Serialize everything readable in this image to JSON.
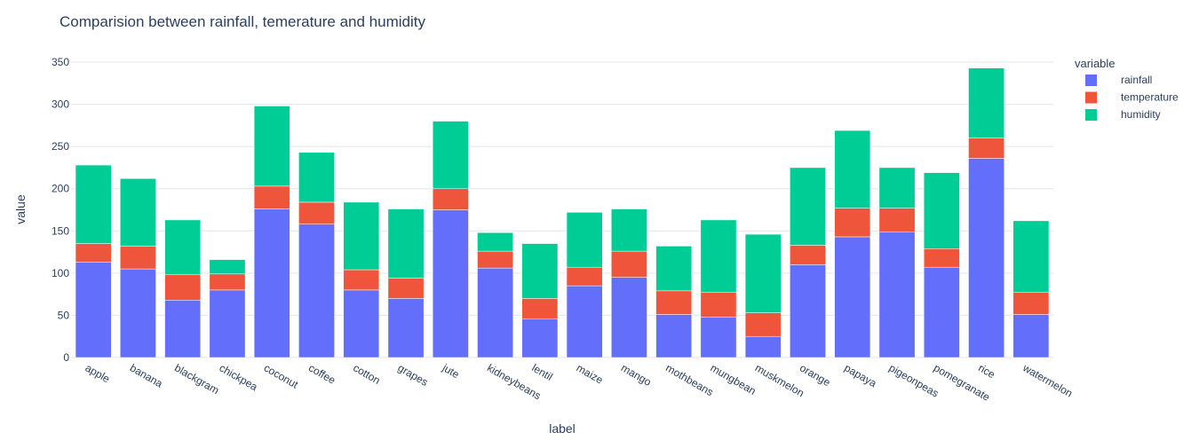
{
  "chart_data": {
    "type": "bar",
    "stacked": true,
    "title": "Comparision between rainfall, temerature and humidity",
    "xlabel": "label",
    "ylabel": "value",
    "ylim": [
      0,
      350
    ],
    "yticks": [
      0,
      50,
      100,
      150,
      200,
      250,
      300,
      350
    ],
    "legend_title": "variable",
    "legend_position": "top-right",
    "grid": true,
    "categories": [
      "apple",
      "banana",
      "blackgram",
      "chickpea",
      "coconut",
      "coffee",
      "cotton",
      "grapes",
      "jute",
      "kidneybeans",
      "lentil",
      "maize",
      "mango",
      "mothbeans",
      "mungbean",
      "muskmelon",
      "orange",
      "papaya",
      "pigeonpeas",
      "pomegranate",
      "rice",
      "watermelon"
    ],
    "series": [
      {
        "name": "rainfall",
        "color": "#636efa",
        "values": [
          113,
          105,
          68,
          80,
          176,
          158,
          80,
          70,
          175,
          106,
          46,
          85,
          95,
          51,
          48,
          25,
          110,
          143,
          149,
          107,
          236,
          51
        ]
      },
      {
        "name": "temperature",
        "color": "#ef553b",
        "values": [
          22,
          27,
          30,
          19,
          27,
          26,
          24,
          24,
          25,
          20,
          24,
          22,
          31,
          28,
          29,
          28,
          23,
          34,
          28,
          22,
          24,
          26
        ]
      },
      {
        "name": "humidity",
        "color": "#00cc96",
        "values": [
          93,
          80,
          65,
          17,
          95,
          59,
          80,
          82,
          80,
          22,
          65,
          65,
          50,
          53,
          86,
          93,
          92,
          92,
          48,
          90,
          83,
          85
        ]
      }
    ]
  }
}
